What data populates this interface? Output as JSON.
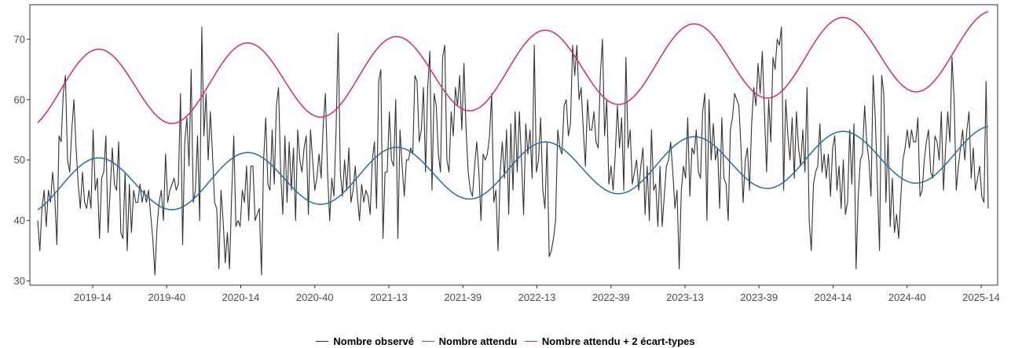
{
  "chart_data": {
    "type": "line",
    "x_tick_labels": [
      "2019-14",
      "2019-40",
      "2020-14",
      "2020-40",
      "2021-13",
      "2021-39",
      "2022-13",
      "2022-39",
      "2023-13",
      "2023-39",
      "2024-14",
      "2024-40",
      "2025-14"
    ],
    "y_ticks": [
      30,
      40,
      50,
      60,
      70
    ],
    "ylim": [
      29.3,
      75.7
    ],
    "grid": false,
    "legend_position": "bottom",
    "series": [
      {
        "name": "Nombre observé",
        "color": "#333333",
        "values": [
          40,
          35,
          42,
          45,
          39,
          45,
          43,
          48,
          44,
          36,
          54,
          53,
          61,
          64,
          50,
          48,
          55,
          60,
          52,
          46,
          42,
          48,
          43,
          42,
          45,
          42,
          55,
          45,
          47,
          37,
          47,
          48,
          54,
          38,
          45,
          52,
          46,
          45,
          53,
          38,
          37,
          48,
          35,
          46,
          38,
          45,
          43,
          43,
          46,
          43,
          45,
          43,
          45,
          41,
          37,
          31,
          39,
          43,
          45,
          40,
          51,
          43,
          45,
          46,
          47,
          45,
          46,
          61,
          36,
          53,
          57,
          49,
          65,
          43,
          45,
          54,
          40,
          72,
          54,
          61,
          50,
          58,
          51,
          43,
          42,
          32,
          45,
          40,
          33,
          38,
          32,
          44,
          54,
          39,
          40,
          39,
          45,
          43,
          49,
          40,
          49,
          49,
          40,
          41,
          42,
          31,
          50,
          57,
          46,
          45,
          55,
          46,
          59,
          62,
          48,
          41,
          54,
          43,
          53,
          45,
          52,
          40,
          55,
          50,
          48,
          52,
          54,
          41,
          55,
          50,
          45,
          47,
          51,
          47,
          56,
          61,
          48,
          40,
          47,
          44,
          55,
          71,
          48,
          44,
          50,
          45,
          52,
          43,
          45,
          49,
          44,
          40,
          46,
          43,
          45,
          44,
          41,
          50,
          53,
          42,
          63,
          65,
          37,
          48,
          48,
          58,
          50,
          49,
          60,
          37,
          55,
          49,
          44,
          50,
          50,
          52,
          51,
          64,
          63,
          53,
          55,
          62,
          48,
          62,
          68,
          45,
          61,
          59,
          51,
          48,
          67,
          69,
          50,
          48,
          58,
          54,
          62,
          59,
          64,
          55,
          66,
          55,
          48,
          45,
          44,
          49,
          53,
          48,
          40,
          51,
          50,
          51,
          54,
          61,
          43,
          45,
          35,
          48,
          53,
          47,
          55,
          41,
          56,
          45,
          58,
          48,
          58,
          50,
          41,
          56,
          51,
          55,
          47,
          69,
          48,
          50,
          57,
          45,
          42,
          53,
          34,
          35,
          37,
          40,
          55,
          52,
          51,
          59,
          60,
          54,
          56,
          69,
          64,
          69,
          60,
          62,
          55,
          49,
          60,
          55,
          55,
          58,
          53,
          52,
          64,
          70,
          54,
          60,
          46,
          49,
          45,
          51,
          59,
          52,
          57,
          45,
          67,
          52,
          55,
          46,
          48,
          50,
          45,
          49,
          52,
          41,
          49,
          40,
          55,
          45,
          46,
          39,
          49,
          39,
          44,
          49,
          50,
          53,
          48,
          42,
          45,
          32,
          45,
          49,
          47,
          57,
          44,
          52,
          51,
          55,
          48,
          47,
          58,
          61,
          40,
          60,
          50,
          56,
          50,
          52,
          42,
          57,
          47,
          46,
          40,
          55,
          57,
          61,
          60,
          59,
          52,
          43,
          50,
          52,
          45,
          56,
          62,
          59,
          66,
          61,
          68,
          58,
          48,
          60,
          53,
          67,
          65,
          70,
          69,
          72,
          45,
          60,
          54,
          50,
          57,
          47,
          58,
          52,
          49,
          55,
          48,
          62,
          40,
          35,
          46,
          48,
          49,
          56,
          48,
          51,
          47,
          51,
          44,
          52,
          54,
          45,
          49,
          42,
          50,
          41,
          43,
          55,
          46,
          56,
          32,
          44,
          50,
          51,
          59,
          53,
          50,
          44,
          64,
          57,
          46,
          35,
          64,
          61,
          43,
          54,
          39,
          47,
          38,
          41,
          37,
          44,
          50,
          52,
          55,
          52,
          55,
          53,
          53,
          57,
          44,
          45,
          50,
          53,
          55,
          48,
          47,
          54,
          53,
          50,
          58,
          45,
          52,
          58,
          53,
          67,
          60,
          45,
          49,
          52,
          55,
          50,
          55,
          58,
          47,
          52,
          45,
          47,
          49,
          44,
          43,
          63,
          42
        ]
      },
      {
        "name": "Nombre attendu",
        "color": "#2e6aa6",
        "amplitude": 4.5,
        "baseline_start": 45.5,
        "baseline_end": 51.1,
        "phase": 10.9
      },
      {
        "name": "Nombre attendu  + 2 écart-types",
        "color": "#e0295f",
        "amplitude": 6.4,
        "baseline_start": 61.5,
        "baseline_end": 68.2,
        "phase": 10.9
      }
    ]
  }
}
